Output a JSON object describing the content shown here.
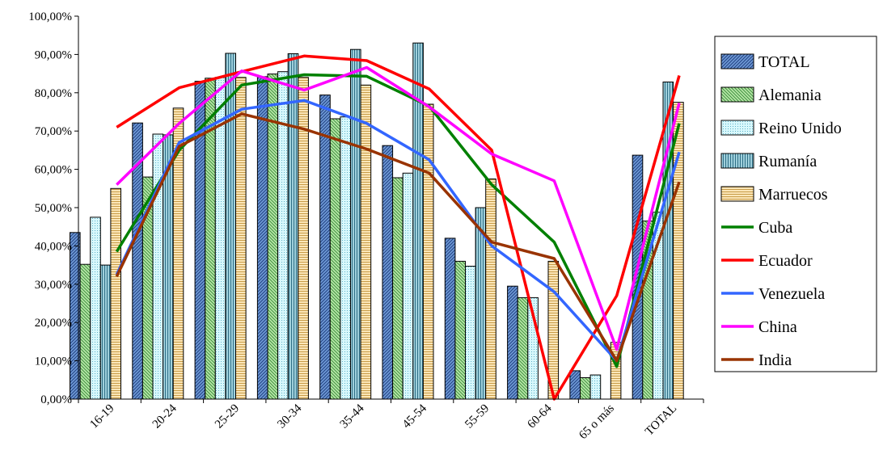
{
  "chart_data": {
    "type": "bar",
    "categories": [
      "16-19",
      "20-24",
      "25-29",
      "30-34",
      "35-44",
      "45-54",
      "55-59",
      "60-64",
      "65 o más",
      "TOTAL"
    ],
    "ylim": [
      0,
      1
    ],
    "yticks": [
      "0,00%",
      "10,00%",
      "20,00%",
      "30,00%",
      "40,00%",
      "50,00%",
      "60,00%",
      "70,00%",
      "80,00%",
      "90,00%",
      "100,00%"
    ],
    "grid": false,
    "legend_position": "right",
    "bar_series": [
      {
        "name": "TOTAL",
        "color": "#6f9ad6",
        "pattern": "diag-right",
        "values": [
          0.435,
          0.721,
          0.83,
          0.842,
          0.794,
          0.662,
          0.42,
          0.295,
          0.074,
          0.637
        ]
      },
      {
        "name": "Alemania",
        "color": "#b8e8a8",
        "pattern": "diag-left",
        "values": [
          0.352,
          0.58,
          0.838,
          0.849,
          0.732,
          0.578,
          0.36,
          0.265,
          0.056,
          0.465
        ]
      },
      {
        "name": "Reino Unido",
        "color": "#cdf5fb",
        "pattern": "dots",
        "values": [
          0.475,
          0.692,
          0.84,
          0.855,
          0.737,
          0.59,
          0.347,
          0.265,
          0.063,
          0.488
        ]
      },
      {
        "name": "Rumanía",
        "color": "#8cc4d4",
        "pattern": "vertical",
        "values": [
          0.35,
          0.69,
          0.903,
          0.902,
          0.913,
          0.93,
          0.5,
          0.0,
          0.0,
          0.828
        ]
      },
      {
        "name": "Marruecos",
        "color": "#f8dca4",
        "pattern": "horizontal",
        "values": [
          0.55,
          0.76,
          0.84,
          0.84,
          0.82,
          0.77,
          0.575,
          0.36,
          0.148,
          0.775
        ]
      }
    ],
    "line_series": [
      {
        "name": "Cuba",
        "color": "#008000",
        "values": [
          0.385,
          0.65,
          0.82,
          0.847,
          0.843,
          0.765,
          0.56,
          0.41,
          0.085,
          0.72
        ]
      },
      {
        "name": "Ecuador",
        "color": "#ff0000",
        "values": [
          0.71,
          0.813,
          0.855,
          0.896,
          0.884,
          0.81,
          0.65,
          0.0,
          0.27,
          0.845
        ]
      },
      {
        "name": "Venezuela",
        "color": "#3366ff",
        "values": [
          0.325,
          0.67,
          0.757,
          0.78,
          0.72,
          0.625,
          0.4,
          0.28,
          0.1,
          0.645
        ]
      },
      {
        "name": "China",
        "color": "#ff00ff",
        "values": [
          0.56,
          0.72,
          0.857,
          0.807,
          0.866,
          0.763,
          0.64,
          0.57,
          0.13,
          0.773
        ]
      },
      {
        "name": "India",
        "color": "#993300",
        "values": [
          0.32,
          0.66,
          0.745,
          0.705,
          0.653,
          0.59,
          0.41,
          0.367,
          0.1,
          0.567
        ]
      }
    ]
  }
}
